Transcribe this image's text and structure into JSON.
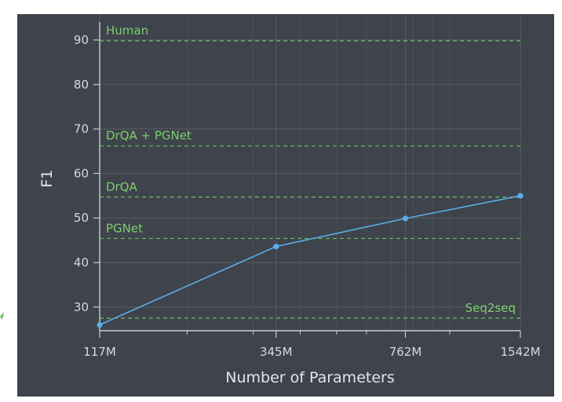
{
  "colors": {
    "background": "#3f434c",
    "grid": "#575c66",
    "series": "#5aaee6",
    "reference": "#6cc05e",
    "text": "#d6d9de",
    "accent_mark": "#6cc05e"
  },
  "chart_data": {
    "type": "line",
    "title": "",
    "xlabel": "Number of Parameters",
    "ylabel": "F1",
    "x_scale": "log",
    "x": [
      117,
      345,
      762,
      1542
    ],
    "x_tick_labels": [
      "117M",
      "345M",
      "762M",
      "1542M"
    ],
    "xlim": [
      117,
      1542
    ],
    "ylim": [
      25,
      93
    ],
    "y_ticks": [
      30,
      40,
      50,
      60,
      70,
      80,
      90
    ],
    "grid": true,
    "series": [
      {
        "values": [
          26.0,
          43.6,
          49.9,
          55.0
        ]
      }
    ],
    "reference_lines": [
      {
        "label": "Human",
        "value": 89.8,
        "label_position": "left"
      },
      {
        "label": "DrQA + PGNet",
        "value": 66.2,
        "label_position": "left"
      },
      {
        "label": "DrQA",
        "value": 54.7,
        "label_position": "left"
      },
      {
        "label": "PGNet",
        "value": 45.4,
        "label_position": "left"
      },
      {
        "label": "Seq2seq",
        "value": 27.5,
        "label_position": "right"
      }
    ]
  }
}
